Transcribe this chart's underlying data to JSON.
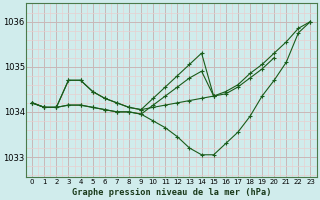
{
  "title": "Graphe pression niveau de la mer (hPa)",
  "background_color": "#d0ecec",
  "grid_color_major": "#c8b8b8",
  "grid_color_minor": "#e8d0d0",
  "line_color": "#1a5c1a",
  "xlim": [
    -0.5,
    23.5
  ],
  "ylim": [
    1032.55,
    1036.4
  ],
  "yticks": [
    1033,
    1034,
    1035,
    1036
  ],
  "xticks": [
    0,
    1,
    2,
    3,
    4,
    5,
    6,
    7,
    8,
    9,
    10,
    11,
    12,
    13,
    14,
    15,
    16,
    17,
    18,
    19,
    20,
    21,
    22,
    23
  ],
  "series": [
    {
      "x": [
        0,
        1,
        2,
        3,
        4,
        5,
        6,
        7,
        8,
        9,
        10,
        11,
        12,
        13,
        14,
        15,
        16,
        17,
        18,
        19,
        20,
        21,
        22,
        23
      ],
      "y": [
        1034.2,
        1034.1,
        1034.1,
        1034.15,
        1034.15,
        1034.1,
        1034.05,
        1034.0,
        1034.0,
        1033.95,
        1033.8,
        1033.65,
        1033.45,
        1033.2,
        1033.05,
        1033.05,
        1033.3,
        1033.55,
        1033.9,
        1034.35,
        1034.7,
        1035.1,
        1035.75,
        1036.0
      ]
    },
    {
      "x": [
        0,
        1,
        2,
        3,
        4,
        5,
        6,
        7,
        8,
        9,
        10,
        11,
        12,
        13,
        14,
        15,
        16,
        17,
        18,
        19,
        20,
        21,
        22,
        23
      ],
      "y": [
        1034.2,
        1034.1,
        1034.1,
        1034.15,
        1034.15,
        1034.1,
        1034.05,
        1034.0,
        1034.0,
        1033.95,
        1034.15,
        1034.35,
        1034.55,
        1034.75,
        1034.9,
        1034.35,
        1034.45,
        1034.6,
        1034.85,
        1035.05,
        1035.3,
        1035.55,
        1035.85,
        1036.0
      ]
    },
    {
      "x": [
        0,
        1,
        2,
        3,
        4,
        5,
        6,
        7,
        8,
        9,
        10,
        11,
        12,
        13,
        14,
        15,
        16,
        17,
        18,
        19,
        20,
        21,
        22,
        23
      ],
      "y": [
        1034.2,
        1034.1,
        1034.1,
        1034.7,
        1034.7,
        1034.45,
        1034.3,
        1034.2,
        1034.1,
        1034.05,
        1034.1,
        1034.15,
        1034.2,
        1034.25,
        1034.3,
        1034.35,
        null,
        null,
        null,
        null,
        null,
        null,
        null,
        null
      ]
    },
    {
      "x": [
        0,
        1,
        2,
        3,
        4,
        5,
        6,
        7,
        8,
        9,
        10,
        11,
        12,
        13,
        14,
        15,
        16,
        17,
        18,
        19,
        20,
        21,
        22,
        23
      ],
      "y": [
        1034.2,
        1034.1,
        1034.1,
        1034.7,
        1034.7,
        1034.45,
        1034.3,
        1034.2,
        1034.1,
        1034.05,
        1034.3,
        1034.55,
        1034.8,
        1035.05,
        1035.3,
        1034.35,
        1034.4,
        1034.55,
        1034.75,
        1034.95,
        1035.2,
        null,
        null,
        null
      ]
    }
  ]
}
